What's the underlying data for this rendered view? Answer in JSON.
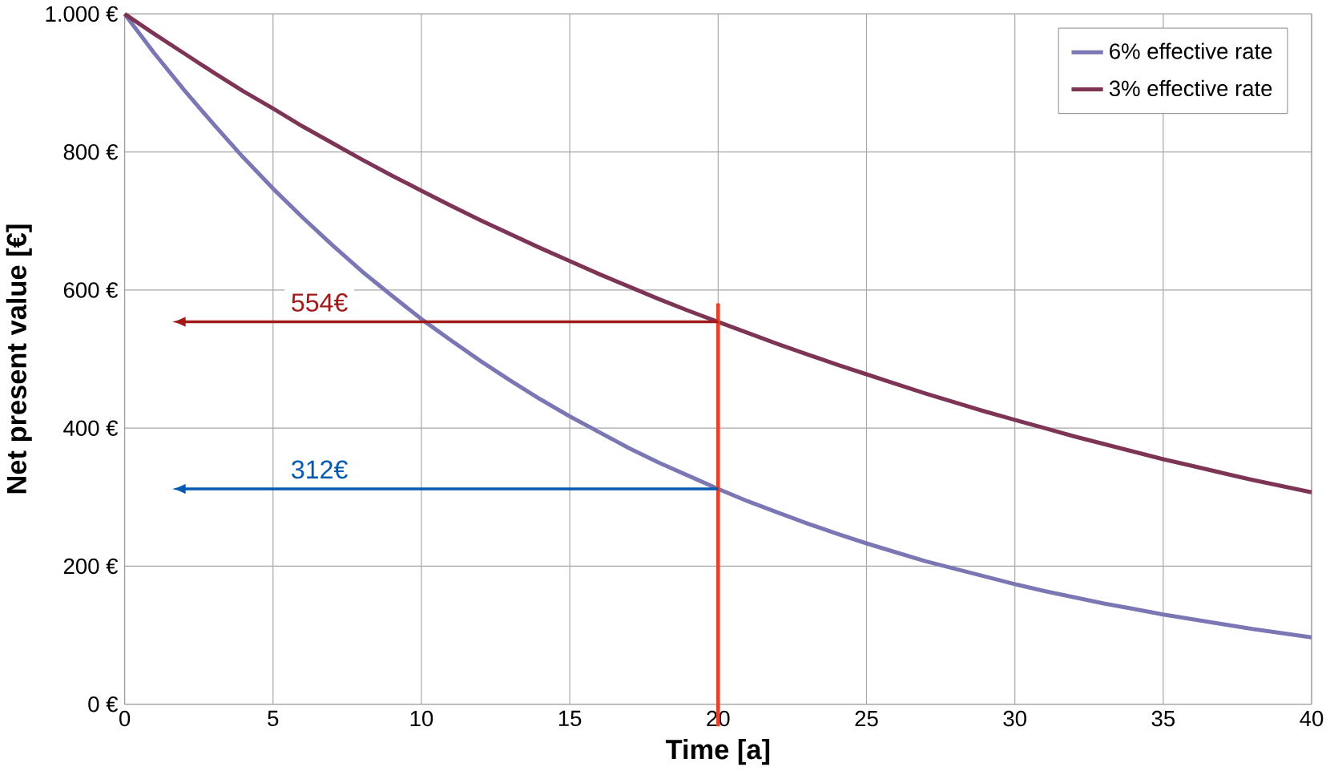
{
  "chart_data": {
    "type": "line",
    "xlabel": "Time [a]",
    "ylabel": "Net present value [€]",
    "x": [
      0,
      1,
      2,
      3,
      4,
      5,
      6,
      7,
      8,
      9,
      10,
      11,
      12,
      13,
      14,
      15,
      16,
      17,
      18,
      19,
      20,
      21,
      22,
      23,
      24,
      25,
      26,
      27,
      28,
      29,
      30,
      31,
      32,
      33,
      34,
      35,
      36,
      37,
      38,
      39,
      40
    ],
    "series": [
      {
        "name": "6% effective rate",
        "color": "#7b76b4",
        "values": [
          1000,
          943,
          890,
          840,
          792,
          747,
          705,
          665,
          627,
          592,
          558,
          527,
          497,
          469,
          442,
          417,
          394,
          371,
          350,
          331,
          312,
          294,
          278,
          262,
          247,
          233,
          220,
          207,
          196,
          185,
          174,
          164,
          155,
          146,
          138,
          130,
          123,
          116,
          109,
          103,
          97
        ]
      },
      {
        "name": "3% effective rate",
        "color": "#7e3454",
        "values": [
          1000,
          971,
          943,
          915,
          888,
          863,
          837,
          813,
          789,
          766,
          744,
          722,
          701,
          681,
          661,
          642,
          623,
          605,
          587,
          570,
          554,
          538,
          522,
          507,
          492,
          478,
          464,
          450,
          437,
          424,
          412,
          400,
          388,
          377,
          366,
          355,
          345,
          335,
          325,
          316,
          307
        ]
      }
    ],
    "xlim": [
      0,
      40
    ],
    "xticks": [
      0,
      5,
      10,
      15,
      20,
      25,
      30,
      35,
      40
    ],
    "ylim": [
      0,
      1000
    ],
    "yticks": [
      {
        "value": 0,
        "label": "0 €"
      },
      {
        "value": 200,
        "label": "200 €"
      },
      {
        "value": 400,
        "label": "400 €"
      },
      {
        "value": 600,
        "label": "600 €"
      },
      {
        "value": 800,
        "label": "800 €"
      },
      {
        "value": 1000,
        "label": "1.000 €"
      }
    ],
    "ref_lines": [
      {
        "axis": "x",
        "value": 20,
        "color": "#e8402a"
      }
    ],
    "annotations": [
      "554€",
      "312€"
    ],
    "grid": true,
    "legend": "top right",
    "marker": "none",
    "line_style": "solid"
  }
}
